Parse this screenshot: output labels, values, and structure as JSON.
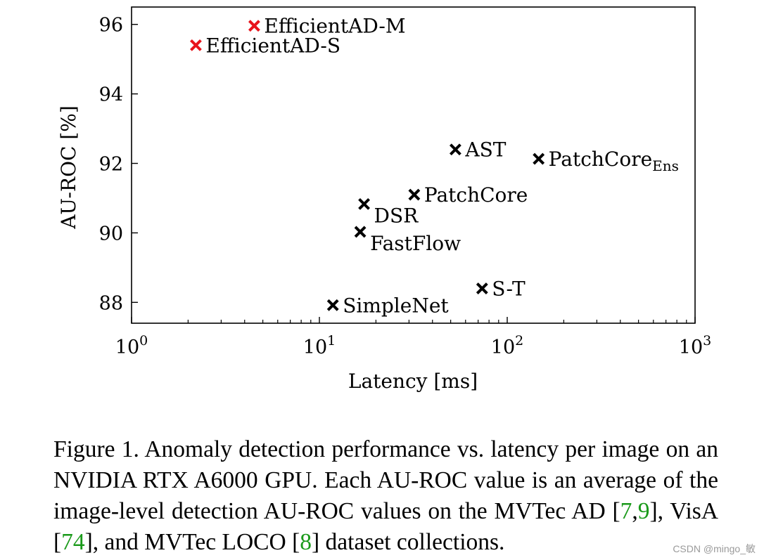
{
  "chart_data": {
    "type": "scatter",
    "xlabel": "Latency [ms]",
    "ylabel": "AU-ROC [%]",
    "xscale": "log",
    "xlim": [
      1,
      1000
    ],
    "ylim": [
      87.4,
      96.5
    ],
    "x_ticks": [
      {
        "value": 1,
        "base": "10",
        "exp": "0"
      },
      {
        "value": 10,
        "base": "10",
        "exp": "1"
      },
      {
        "value": 100,
        "base": "10",
        "exp": "2"
      },
      {
        "value": 1000,
        "base": "10",
        "exp": "3"
      }
    ],
    "y_ticks": [
      88,
      90,
      92,
      94,
      96
    ],
    "grid": false,
    "points": [
      {
        "name": "EfficientAD-M",
        "x": 4.5,
        "y": 95.96,
        "color": "#e8141b",
        "label_pos": "right"
      },
      {
        "name": "EfficientAD-S",
        "x": 2.2,
        "y": 95.4,
        "color": "#e8141b",
        "label_pos": "right"
      },
      {
        "name": "AST",
        "x": 53,
        "y": 92.4,
        "color": "#000000",
        "label_pos": "right"
      },
      {
        "name": "PatchCore",
        "sub": "Ens",
        "x": 147,
        "y": 92.13,
        "color": "#000000",
        "label_pos": "right"
      },
      {
        "name": "PatchCore",
        "x": 32,
        "y": 91.1,
        "color": "#000000",
        "label_pos": "right"
      },
      {
        "name": "DSR",
        "x": 17.3,
        "y": 90.83,
        "color": "#000000",
        "label_pos": "below-right"
      },
      {
        "name": "FastFlow",
        "x": 16.5,
        "y": 90.03,
        "color": "#000000",
        "label_pos": "below-right"
      },
      {
        "name": "S-T",
        "x": 73.5,
        "y": 88.4,
        "color": "#000000",
        "label_pos": "right"
      },
      {
        "name": "SimpleNet",
        "x": 11.8,
        "y": 87.92,
        "color": "#000000",
        "label_pos": "right"
      }
    ]
  },
  "caption": {
    "prefix": "Figure 1. Anomaly detection performance vs. latency per image on an NVIDIA RTX A6000 GPU. Each AU-ROC value is an average of the image-level detection AU-ROC values on the MVTec AD ",
    "cite_open": "[",
    "cite_a": "7",
    "cite_sep": ",",
    "cite_b": "9",
    "mid1": "], VisA [",
    "cite_c": "74",
    "mid2": "], and MVTec LOCO [",
    "cite_d": "8",
    "suffix": "] dataset collections."
  },
  "watermark": "CSDN @mingo_敏"
}
